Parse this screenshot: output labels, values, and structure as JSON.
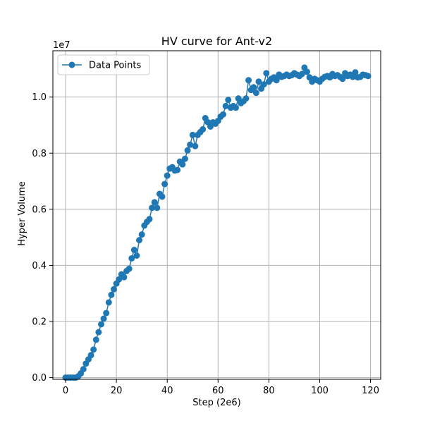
{
  "chart_data": {
    "type": "line",
    "title": "HV curve for Ant-v2",
    "xlabel": "Step (2e6)",
    "ylabel": "Hyper Volume",
    "y_scale_label": "1e7",
    "grid": true,
    "legend_position": "upper-left",
    "xlim": [
      -5,
      124
    ],
    "ylim": [
      -0.06,
      11.65
    ],
    "x_ticks": [
      0,
      20,
      40,
      60,
      80,
      100,
      120
    ],
    "y_ticks": [
      0.0,
      2.0,
      4.0,
      6.0,
      8.0,
      10.0
    ],
    "x_tick_labels": [
      "0",
      "20",
      "40",
      "60",
      "80",
      "100",
      "120"
    ],
    "y_tick_labels": [
      "0.0",
      "0.2",
      "0.4",
      "0.6",
      "0.8",
      "1.0"
    ],
    "series": [
      {
        "name": "Data Points",
        "color": "#1f77b4",
        "marker": "circle",
        "x": [
          0,
          1,
          2,
          3,
          4,
          5,
          6,
          7,
          8,
          9,
          10,
          11,
          12,
          13,
          14,
          15,
          16,
          17,
          18,
          19,
          20,
          21,
          22,
          23,
          24,
          25,
          26,
          27,
          28,
          29,
          30,
          31,
          32,
          33,
          34,
          35,
          36,
          37,
          38,
          39,
          40,
          41,
          42,
          43,
          44,
          45,
          46,
          47,
          48,
          49,
          50,
          51,
          52,
          53,
          54,
          55,
          56,
          57,
          58,
          59,
          60,
          61,
          62,
          63,
          64,
          65,
          66,
          67,
          68,
          69,
          70,
          71,
          72,
          73,
          74,
          75,
          76,
          77,
          78,
          79,
          80,
          81,
          82,
          83,
          84,
          85,
          86,
          87,
          88,
          89,
          90,
          91,
          92,
          93,
          94,
          95,
          96,
          97,
          98,
          99,
          100,
          101,
          102,
          103,
          104,
          105,
          106,
          107,
          108,
          109,
          110,
          111,
          112,
          113,
          114,
          115,
          116,
          117,
          118,
          119
        ],
        "y": [
          0,
          0,
          0,
          0,
          0,
          0.05,
          0.15,
          0.3,
          0.5,
          0.65,
          0.8,
          1.0,
          1.35,
          1.62,
          1.9,
          2.1,
          2.3,
          2.68,
          2.95,
          3.15,
          3.35,
          3.5,
          3.68,
          3.58,
          3.8,
          3.88,
          4.25,
          4.55,
          4.35,
          4.9,
          5.1,
          5.42,
          5.55,
          5.65,
          6.05,
          6.25,
          6.05,
          6.55,
          6.45,
          6.9,
          7.2,
          7.45,
          7.5,
          7.38,
          7.4,
          7.7,
          7.6,
          7.8,
          8.1,
          8.3,
          8.65,
          8.25,
          8.65,
          8.75,
          8.85,
          9.25,
          9.1,
          8.95,
          9.1,
          9.05,
          9.15,
          9.3,
          9.38,
          9.68,
          9.9,
          9.62,
          9.68,
          9.62,
          9.95,
          9.78,
          9.85,
          9.95,
          10.6,
          10.25,
          10.35,
          10.15,
          10.55,
          10.3,
          10.45,
          10.85,
          10.55,
          10.65,
          10.7,
          10.6,
          10.8,
          10.72,
          10.75,
          10.8,
          10.75,
          10.78,
          10.85,
          10.8,
          10.75,
          10.82,
          11.05,
          10.9,
          10.7,
          10.55,
          10.65,
          10.6,
          10.55,
          10.65,
          10.72,
          10.75,
          10.7,
          10.82,
          10.75,
          10.78,
          10.72,
          10.65,
          10.85,
          10.75,
          10.8,
          10.72,
          10.88,
          10.7,
          10.72,
          10.8,
          10.78,
          10.75
        ]
      }
    ]
  }
}
